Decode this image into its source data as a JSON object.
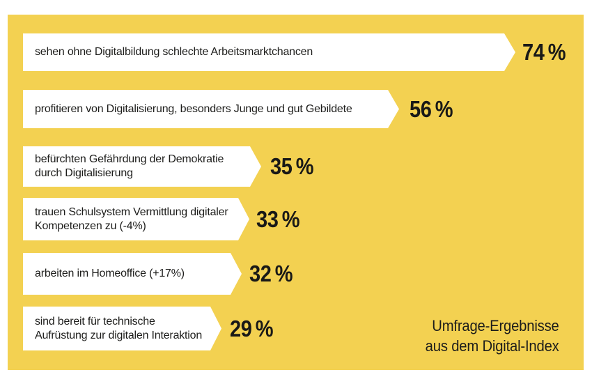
{
  "colors": {
    "background_panel": "#f3d151",
    "bar_fill": "#ffffff",
    "text": "#1d1d1b",
    "page_background": "#ffffff"
  },
  "bars": [
    {
      "label": "sehen ohne Digitalbildung schlechte Arbeitsmarktchancen",
      "value_label": "74 %"
    },
    {
      "label": "profitieren von Digitalisierung, besonders Junge und gut Gebildete",
      "value_label": "56 %"
    },
    {
      "label": "befürchten Gefährdung der Demokratie\ndurch Digitalisierung",
      "value_label": "35 %"
    },
    {
      "label": "trauen Schulsystem Vermittlung digitaler\nKompetenzen zu (-4%)",
      "value_label": "33 %"
    },
    {
      "label": "arbeiten im Homeoffice (+17%)",
      "value_label": "32 %"
    },
    {
      "label": "sind bereit für technische\nAufrüstung zur digitalen Interaktion",
      "value_label": "29 %"
    }
  ],
  "source": {
    "text": "Umfrage-Ergebnisse\naus dem Digital-Index"
  },
  "chart_data": {
    "type": "bar",
    "orientation": "horizontal",
    "categories": [
      "sehen ohne Digitalbildung schlechte Arbeitsmarktchancen",
      "profitieren von Digitalisierung, besonders Junge und gut Gebildete",
      "befürchten Gefährdung der Demokratie durch Digitalisierung",
      "trauen Schulsystem Vermittlung digitaler Kompetenzen zu (-4%)",
      "arbeiten im Homeoffice (+17%)",
      "sind bereit für technische Aufrüstung zur digitalen Interaktion"
    ],
    "values": [
      74,
      56,
      35,
      33,
      32,
      29
    ],
    "value_labels": [
      "74 %",
      "56 %",
      "35 %",
      "33 %",
      "32 %",
      "29 %"
    ],
    "deltas_shown_in_labels": {
      "trauen Schulsystem": -4,
      "arbeiten im Homeoffice": 17
    },
    "title": "",
    "annotation": "Umfrage-Ergebnisse aus dem Digital-Index",
    "xlim": [
      0,
      100
    ],
    "bar_shape": "arrow-right",
    "bar_color": "#ffffff",
    "background": "#f3d151",
    "legend": "none",
    "grid": false
  }
}
